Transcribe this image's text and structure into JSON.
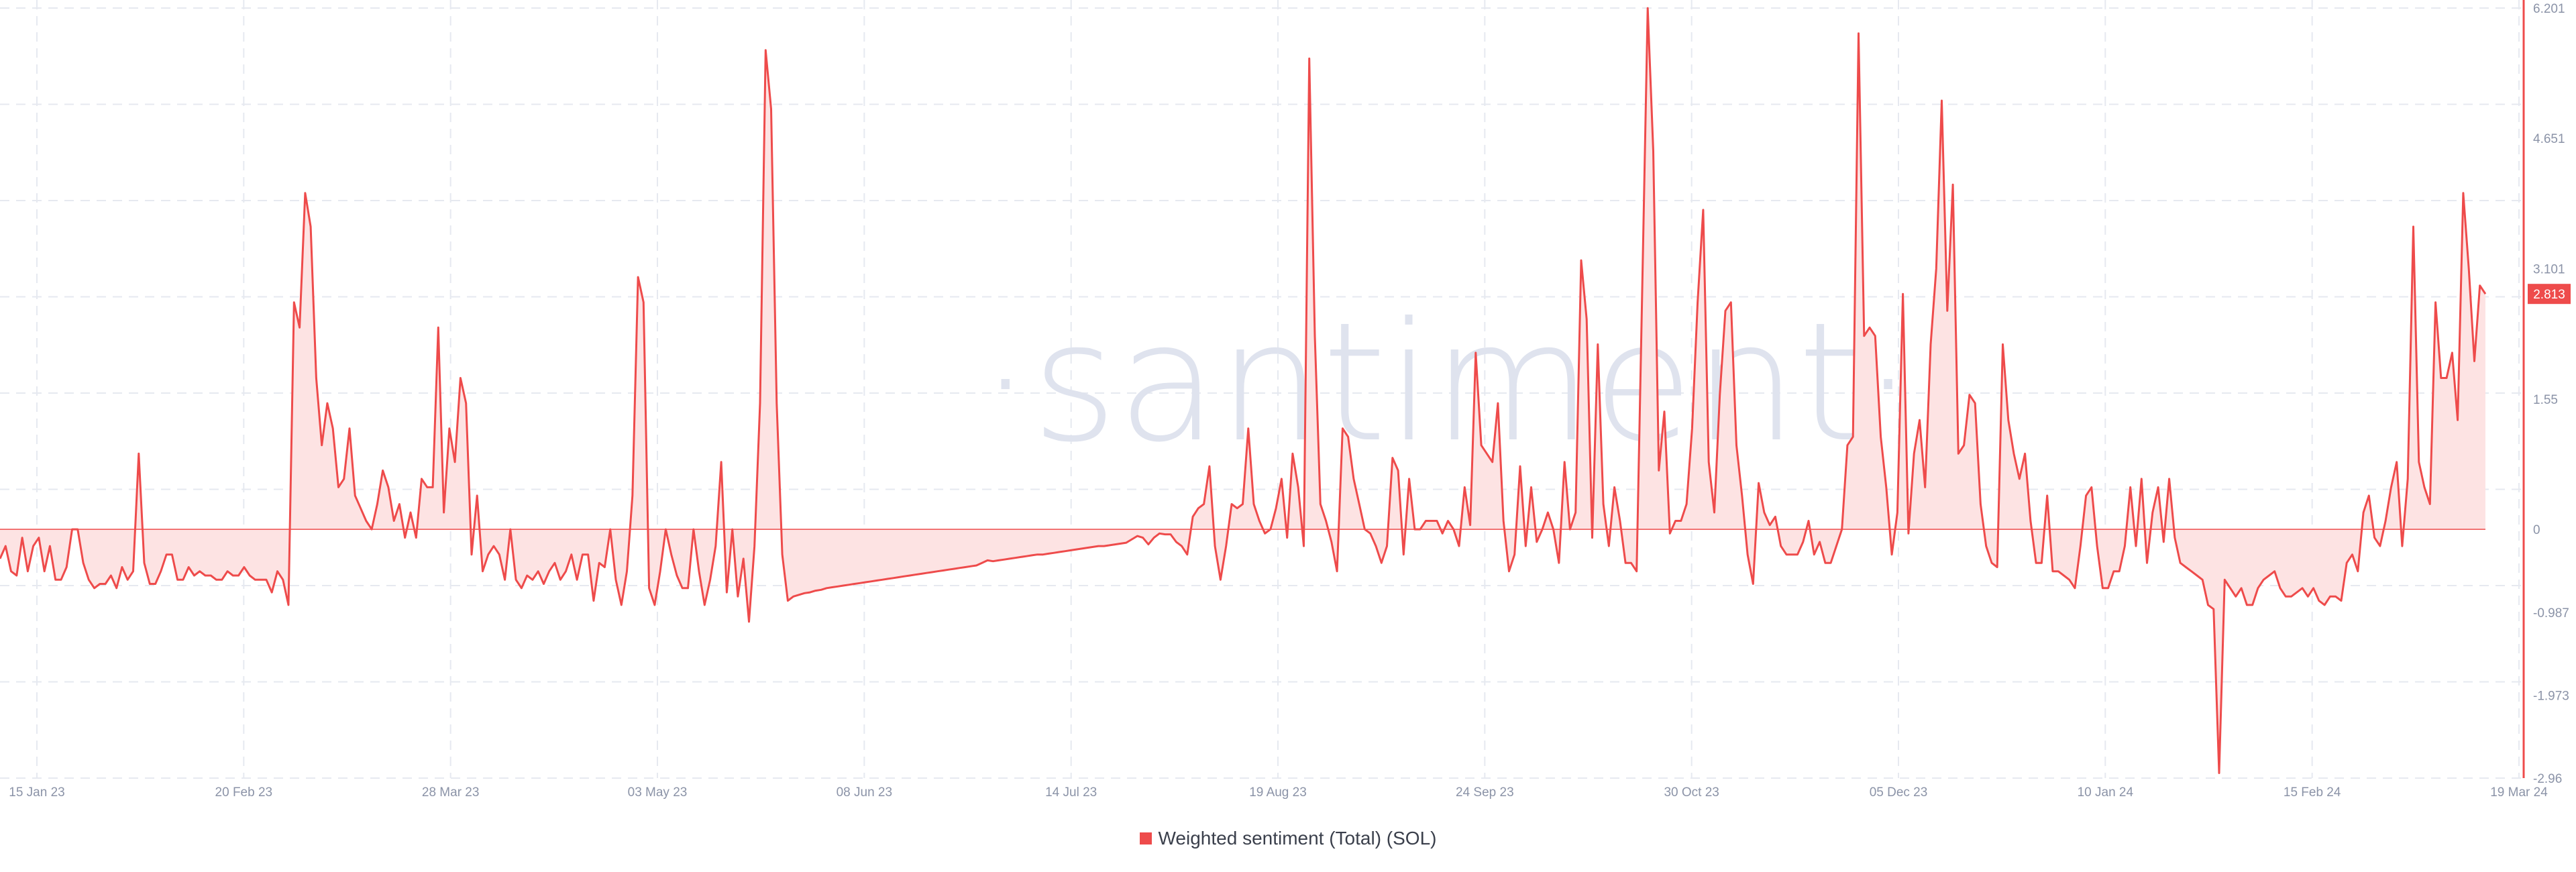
{
  "colors": {
    "line": "#ee4b4b",
    "fill": "#fde3e3",
    "grid": "#e6e9f0",
    "axis": "#ee4b4b",
    "badge_text": "#ffffff"
  },
  "watermark": "·santiment·",
  "legend": {
    "label": "Weighted sentiment (Total) (SOL)"
  },
  "current_value_badge": "2.813",
  "chart_data": {
    "type": "area",
    "x_ticks": [
      "15 Jan 23",
      "20 Feb 23",
      "28 Mar 23",
      "03 May 23",
      "08 Jun 23",
      "14 Jul 23",
      "19 Aug 23",
      "24 Sep 23",
      "30 Oct 23",
      "05 Dec 23",
      "10 Jan 24",
      "15 Feb 24",
      "19 Mar 24"
    ],
    "y_ticks": [
      "6.201",
      "4.651",
      "3.101",
      "1.55",
      "0",
      "-0.987",
      "-1.973",
      "-2.96"
    ],
    "ylim": [
      -2.96,
      6.201
    ],
    "series": [
      {
        "name": "Weighted sentiment (Total) (SOL)",
        "x_range": [
          "2023-01-15",
          "2024-03-19"
        ],
        "values": [
          -0.35,
          -0.2,
          -0.5,
          -0.55,
          -0.1,
          -0.5,
          -0.2,
          -0.1,
          -0.5,
          -0.2,
          -0.6,
          -0.6,
          -0.45,
          0.0,
          0.0,
          -0.4,
          -0.6,
          -0.7,
          -0.65,
          -0.65,
          -0.55,
          -0.7,
          -0.45,
          -0.6,
          -0.5,
          0.9,
          -0.4,
          -0.65,
          -0.65,
          -0.5,
          -0.3,
          -0.3,
          -0.6,
          -0.6,
          -0.45,
          -0.55,
          -0.5,
          -0.55,
          -0.55,
          -0.6,
          -0.6,
          -0.5,
          -0.55,
          -0.55,
          -0.45,
          -0.55,
          -0.6,
          -0.6,
          -0.6,
          -0.75,
          -0.5,
          -0.6,
          -0.9,
          2.7,
          2.4,
          4.0,
          3.6,
          1.8,
          1.0,
          1.5,
          1.2,
          0.5,
          0.6,
          1.2,
          0.4,
          0.25,
          0.1,
          0.0,
          0.3,
          0.7,
          0.5,
          0.1,
          0.3,
          -0.1,
          0.2,
          -0.1,
          0.6,
          0.5,
          0.5,
          2.4,
          0.2,
          1.2,
          0.8,
          1.8,
          1.5,
          -0.3,
          0.4,
          -0.5,
          -0.3,
          -0.2,
          -0.3,
          -0.6,
          0.0,
          -0.6,
          -0.7,
          -0.55,
          -0.6,
          -0.5,
          -0.65,
          -0.5,
          -0.4,
          -0.6,
          -0.5,
          -0.3,
          -0.6,
          -0.3,
          -0.3,
          -0.85,
          -0.4,
          -0.45,
          0.0,
          -0.6,
          -0.9,
          -0.5,
          0.4,
          3.0,
          2.7,
          -0.7,
          -0.9,
          -0.5,
          0.0,
          -0.3,
          -0.55,
          -0.7,
          -0.7,
          0.0,
          -0.5,
          -0.9,
          -0.6,
          -0.2,
          0.8,
          -0.75,
          0.0,
          -0.8,
          -0.35,
          -1.1,
          -0.2,
          1.5,
          5.7,
          5.0,
          1.5,
          -0.3,
          -0.85,
          -0.8,
          -0.78,
          -0.76,
          -0.75,
          -0.73,
          -0.72,
          -0.7,
          -0.69,
          -0.68,
          -0.67,
          -0.66,
          -0.65,
          -0.64,
          -0.63,
          -0.62,
          -0.61,
          -0.6,
          -0.59,
          -0.58,
          -0.57,
          -0.56,
          -0.55,
          -0.54,
          -0.53,
          -0.52,
          -0.51,
          -0.5,
          -0.49,
          -0.48,
          -0.47,
          -0.46,
          -0.45,
          -0.44,
          -0.43,
          -0.4,
          -0.37,
          -0.38,
          -0.37,
          -0.36,
          -0.35,
          -0.34,
          -0.33,
          -0.32,
          -0.31,
          -0.3,
          -0.3,
          -0.29,
          -0.28,
          -0.27,
          -0.26,
          -0.25,
          -0.24,
          -0.23,
          -0.22,
          -0.21,
          -0.2,
          -0.2,
          -0.19,
          -0.18,
          -0.17,
          -0.16,
          -0.12,
          -0.08,
          -0.1,
          -0.18,
          -0.1,
          -0.05,
          -0.06,
          -0.06,
          -0.15,
          -0.2,
          -0.3,
          0.15,
          0.25,
          0.3,
          0.75,
          -0.2,
          -0.6,
          -0.2,
          0.3,
          0.25,
          0.3,
          1.2,
          0.3,
          0.1,
          -0.05,
          0.0,
          0.25,
          0.6,
          -0.1,
          0.9,
          0.5,
          -0.2,
          5.6,
          2.3,
          0.3,
          0.1,
          -0.15,
          -0.5,
          1.2,
          1.1,
          0.6,
          0.3,
          0.0,
          -0.05,
          -0.2,
          -0.4,
          -0.2,
          0.85,
          0.7,
          -0.3,
          0.6,
          0.0,
          0.0,
          0.1,
          0.1,
          0.1,
          -0.05,
          0.1,
          0.0,
          -0.2,
          0.5,
          0.05,
          2.1,
          1.0,
          0.9,
          0.8,
          1.5,
          0.1,
          -0.5,
          -0.3,
          0.75,
          -0.2,
          0.5,
          -0.15,
          0.0,
          0.2,
          0.0,
          -0.4,
          0.8,
          0.0,
          0.2,
          3.2,
          2.5,
          -0.1,
          2.2,
          0.3,
          -0.2,
          0.5,
          0.1,
          -0.4,
          -0.4,
          -0.5,
          2.8,
          6.2,
          4.5,
          0.7,
          1.4,
          -0.05,
          0.1,
          0.1,
          0.3,
          1.2,
          2.7,
          3.8,
          0.8,
          0.2,
          1.6,
          2.6,
          2.7,
          1.0,
          0.4,
          -0.3,
          -0.65,
          0.55,
          0.2,
          0.05,
          0.15,
          -0.2,
          -0.3,
          -0.3,
          -0.3,
          -0.15,
          0.1,
          -0.3,
          -0.15,
          -0.4,
          -0.4,
          -0.2,
          0.0,
          1.0,
          1.1,
          5.9,
          2.3,
          2.4,
          2.3,
          1.1,
          0.5,
          -0.3,
          0.2,
          2.8,
          -0.05,
          0.9,
          1.3,
          0.5,
          2.2,
          3.1,
          5.1,
          2.6,
          4.1,
          0.9,
          1.0,
          1.6,
          1.5,
          0.3,
          -0.2,
          -0.4,
          -0.45,
          2.2,
          1.3,
          0.9,
          0.6,
          0.9,
          0.1,
          -0.4,
          -0.4,
          0.4,
          -0.5,
          -0.5,
          -0.55,
          -0.6,
          -0.7,
          -0.2,
          0.4,
          0.5,
          -0.2,
          -0.7,
          -0.7,
          -0.5,
          -0.5,
          -0.2,
          0.5,
          -0.2,
          0.6,
          -0.4,
          0.2,
          0.5,
          -0.15,
          0.6,
          -0.1,
          -0.4,
          -0.45,
          -0.5,
          -0.55,
          -0.6,
          -0.9,
          -0.95,
          -2.9,
          -0.6,
          -0.7,
          -0.8,
          -0.7,
          -0.9,
          -0.9,
          -0.7,
          -0.6,
          -0.55,
          -0.5,
          -0.7,
          -0.8,
          -0.8,
          -0.75,
          -0.7,
          -0.8,
          -0.7,
          -0.85,
          -0.9,
          -0.8,
          -0.8,
          -0.85,
          -0.4,
          -0.3,
          -0.5,
          0.2,
          0.4,
          -0.1,
          -0.2,
          0.1,
          0.5,
          0.8,
          -0.2,
          0.6,
          3.6,
          0.8,
          0.5,
          0.3,
          2.7,
          1.8,
          1.8,
          2.1,
          1.3,
          4.0,
          3.1,
          2.0,
          2.9,
          2.8
        ]
      }
    ]
  }
}
